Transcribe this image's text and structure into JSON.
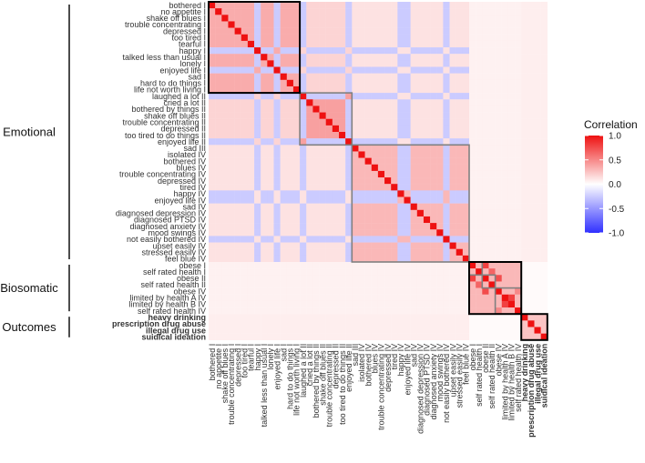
{
  "chart_data": {
    "type": "heatmap",
    "title": "",
    "legend": {
      "title": "Correlation",
      "ticks": [
        "1.0",
        "0.5",
        "0.0",
        "-0.5",
        "-1.0"
      ],
      "tick_values": [
        1.0,
        0.5,
        0.0,
        -0.5,
        -1.0
      ],
      "range": [
        -1,
        1
      ],
      "placement": "right"
    },
    "colors": {
      "low": "#3030ff",
      "mid": "#ffffff",
      "high": "#ee1111"
    },
    "labels": [
      "bothered I",
      "no appetite I",
      "shake off blues I",
      "trouble concentrating I",
      "depressed I",
      "too tired I",
      "tearful I",
      "happy I",
      "talked less than usual I",
      "lonely I",
      "enjoyed life I",
      "sad I",
      "hard to do things I",
      "life not worth living I",
      "laughed a lot II",
      "cried a lot II",
      "bothered by things II",
      "shake off blues II",
      "trouble concentrating II",
      "depressed II",
      "too tired to do things II",
      "enjoyed life II",
      "sad III",
      "isolated IV",
      "bothered IV",
      "blues IV",
      "trouble concentrating IV",
      "depressed IV",
      "tired IV",
      "happy IV",
      "enjoyed life IV",
      "sad IV",
      "diagnosed depression IV",
      "diagnosed PTSD IV",
      "diagnosed anxiety IV",
      "mood swings IV",
      "not easily bothered IV",
      "upset easily IV",
      "stressed easily IV",
      "feel blue IV",
      "obese I",
      "self rated health I",
      "obese II",
      "self rated health II",
      "obese IV",
      "limited by health A IV",
      "limited by health B IV",
      "self rated health IV",
      "heavy drinking",
      "prescription drug abuse",
      "illegal drug use",
      "suidical ideation"
    ],
    "bold_labels": [
      "heavy drinking",
      "prescription drug abuse",
      "illegal drug use",
      "suidical ideation"
    ],
    "groups": [
      {
        "name": "Emotional",
        "from": 0,
        "to": 39
      },
      {
        "name": "Biosomatic",
        "from": 40,
        "to": 47
      },
      {
        "name": "Outcomes",
        "from": 48,
        "to": 51
      }
    ],
    "black_blocks": [
      [
        0,
        13
      ],
      [
        40,
        47
      ],
      [
        48,
        51
      ]
    ],
    "gray_blocks": [
      [
        14,
        21
      ],
      [
        22,
        39
      ],
      [
        40,
        41
      ],
      [
        42,
        43
      ],
      [
        44,
        47
      ]
    ],
    "block_correlations": [
      {
        "rows": [
          0,
          13
        ],
        "cols": [
          0,
          13
        ],
        "value": 0.35
      },
      {
        "rows": [
          14,
          21
        ],
        "cols": [
          14,
          21
        ],
        "value": 0.4
      },
      {
        "rows": [
          22,
          39
        ],
        "cols": [
          22,
          39
        ],
        "value": 0.3
      },
      {
        "rows": [
          0,
          13
        ],
        "cols": [
          14,
          21
        ],
        "value": 0.18
      },
      {
        "rows": [
          0,
          13
        ],
        "cols": [
          22,
          39
        ],
        "value": 0.12
      },
      {
        "rows": [
          14,
          21
        ],
        "cols": [
          22,
          39
        ],
        "value": 0.12
      },
      {
        "rows": [
          0,
          39
        ],
        "cols": [
          40,
          47
        ],
        "value": 0.06
      },
      {
        "rows": [
          0,
          39
        ],
        "cols": [
          48,
          51
        ],
        "value": 0.07
      },
      {
        "rows": [
          40,
          47
        ],
        "cols": [
          40,
          47
        ],
        "value": 0.3
      },
      {
        "rows": [
          40,
          47
        ],
        "cols": [
          48,
          51
        ],
        "value": 0.02
      },
      {
        "rows": [
          48,
          51
        ],
        "cols": [
          48,
          51
        ],
        "value": 0.25
      }
    ],
    "negative_items": [
      7,
      10,
      14,
      21,
      29,
      30,
      36
    ],
    "negative_value": -0.25,
    "strong_pairs": [
      {
        "i": 40,
        "j": 42,
        "value": 0.8
      },
      {
        "i": 41,
        "j": 43,
        "value": 0.65
      },
      {
        "i": 42,
        "j": 44,
        "value": 0.75
      },
      {
        "i": 45,
        "j": 46,
        "value": 0.8
      },
      {
        "i": 44,
        "j": 47,
        "value": 0.5
      }
    ]
  }
}
